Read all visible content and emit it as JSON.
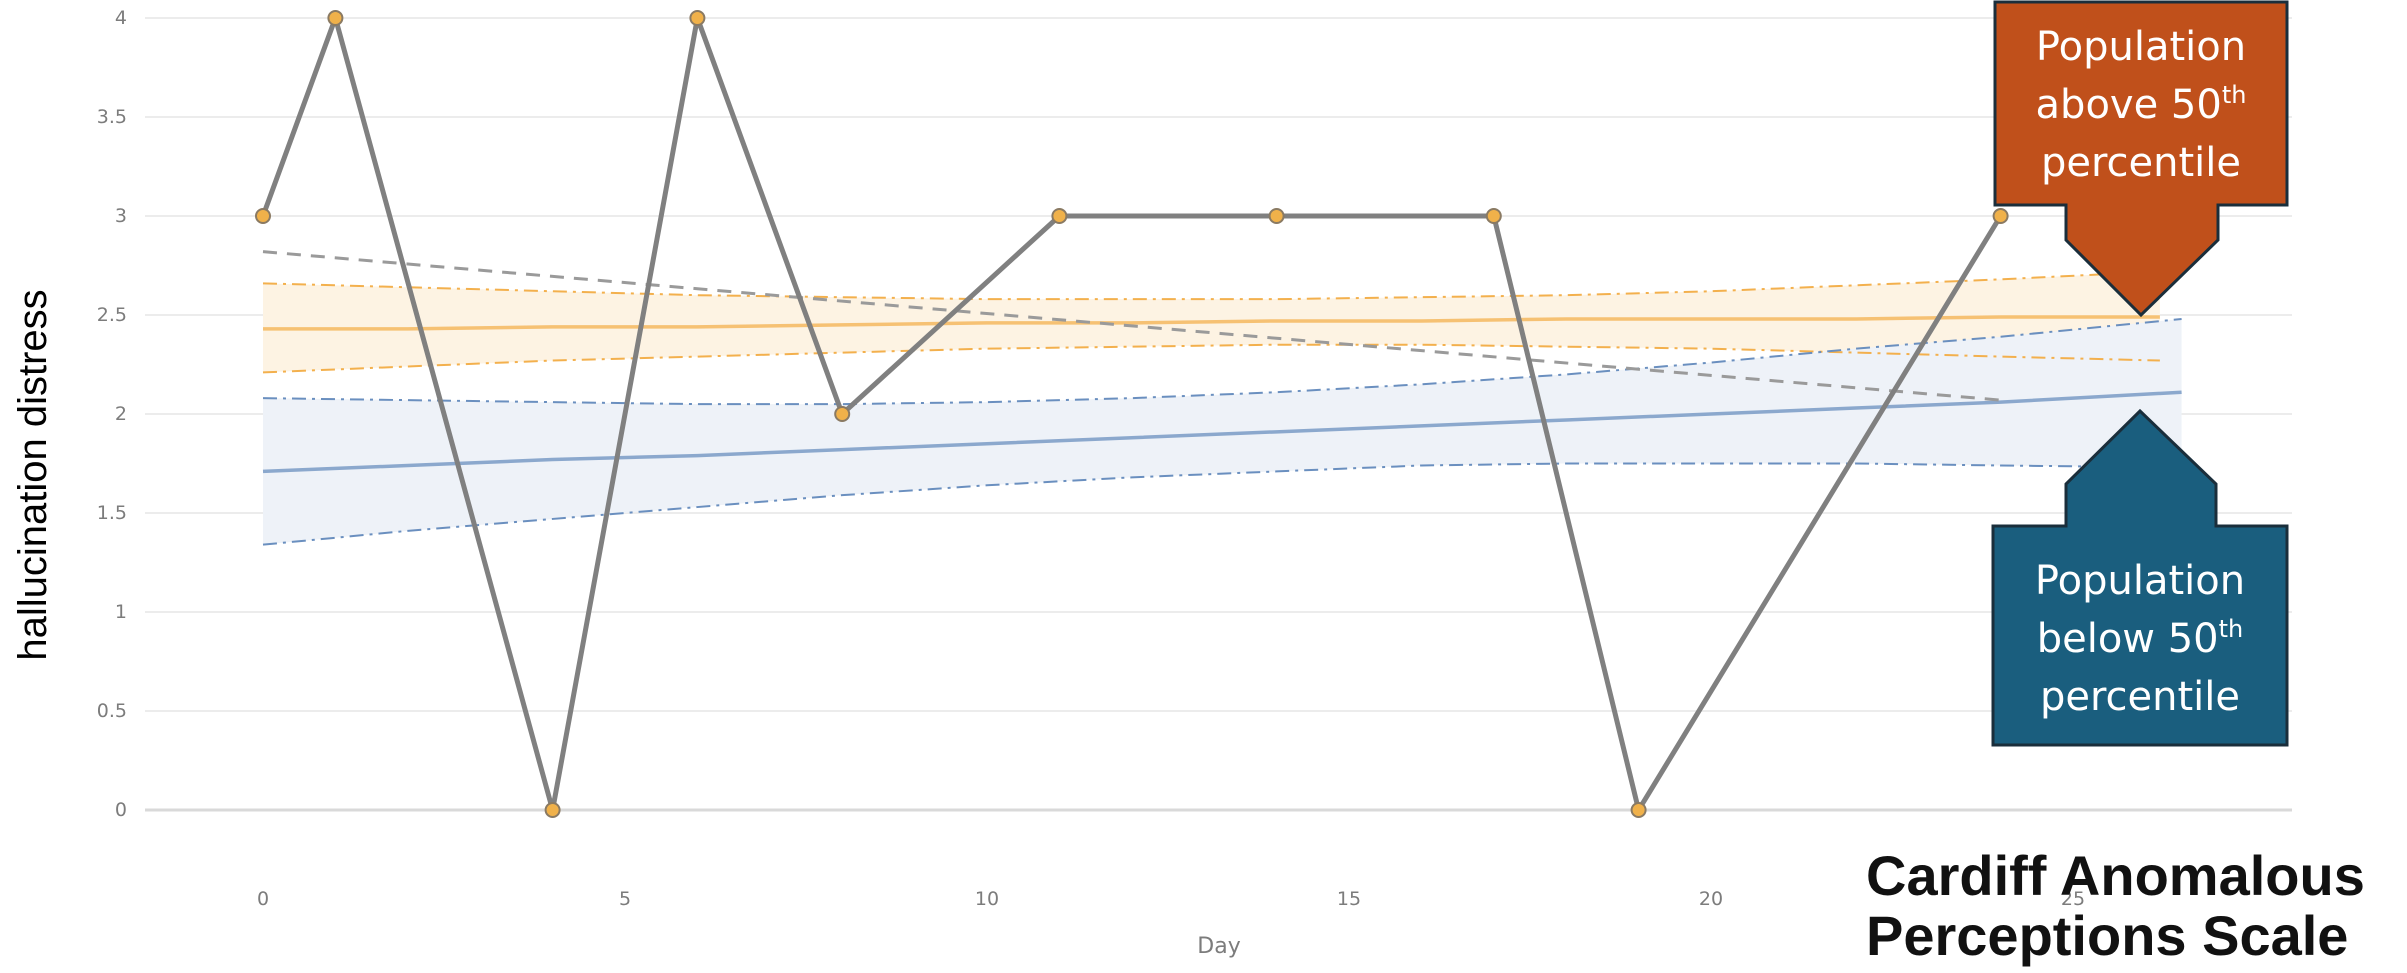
{
  "chart_data": {
    "type": "line",
    "title": "",
    "xlabel": "Day",
    "ylabel": "hallucination distress",
    "xlim": [
      -4,
      26.5
    ],
    "ylim": [
      0,
      4
    ],
    "x_ticks": [
      0,
      5,
      10,
      15,
      20,
      25
    ],
    "y_ticks": [
      0,
      0.5,
      1,
      1.5,
      2,
      2.5,
      3,
      3.5,
      4
    ],
    "y_tick_labels": [
      "0",
      "0.5",
      "1",
      "1.5",
      "2",
      "2.5",
      "3",
      "3.5",
      "4"
    ],
    "grid": true,
    "series": [
      {
        "style": "solid-with-markers",
        "color": "#808080",
        "marker_color": "#f0b14a",
        "x": [
          0,
          1,
          4,
          6,
          8,
          11,
          14,
          17,
          19,
          24
        ],
        "y": [
          3,
          4,
          0,
          4,
          2,
          3,
          3,
          3,
          0,
          3
        ]
      },
      {
        "style": "dashed-trend",
        "color": "#9a9a9a",
        "x": [
          0,
          24
        ],
        "y": [
          2.82,
          2.07
        ]
      }
    ],
    "bands": [
      {
        "color": "#f3b04d",
        "fill": "#fdf3e3",
        "x": [
          0,
          2,
          4,
          6,
          8,
          10,
          12,
          14,
          16,
          18,
          20,
          22,
          24,
          26.2
        ],
        "mean": [
          2.43,
          2.43,
          2.44,
          2.44,
          2.45,
          2.46,
          2.46,
          2.47,
          2.47,
          2.48,
          2.48,
          2.48,
          2.49,
          2.49
        ],
        "upper": [
          2.66,
          2.64,
          2.62,
          2.6,
          2.59,
          2.58,
          2.58,
          2.58,
          2.59,
          2.6,
          2.62,
          2.65,
          2.68,
          2.72
        ],
        "lower": [
          2.21,
          2.24,
          2.27,
          2.29,
          2.31,
          2.33,
          2.34,
          2.35,
          2.35,
          2.34,
          2.33,
          2.31,
          2.29,
          2.27
        ]
      },
      {
        "color": "#6a8fbf",
        "fill": "#eef2f8",
        "x": [
          0,
          2,
          4,
          6,
          8,
          10,
          12,
          14,
          16,
          18,
          20,
          22,
          24,
          26.5
        ],
        "mean": [
          1.71,
          1.74,
          1.77,
          1.79,
          1.82,
          1.85,
          1.88,
          1.91,
          1.94,
          1.97,
          2.0,
          2.03,
          2.06,
          2.11
        ],
        "upper": [
          2.08,
          2.07,
          2.06,
          2.05,
          2.05,
          2.06,
          2.08,
          2.11,
          2.15,
          2.2,
          2.26,
          2.33,
          2.39,
          2.48
        ],
        "lower": [
          1.34,
          1.41,
          1.47,
          1.53,
          1.59,
          1.64,
          1.68,
          1.71,
          1.74,
          1.75,
          1.75,
          1.75,
          1.74,
          1.73
        ]
      }
    ]
  },
  "callouts": {
    "above": {
      "line1": "Population",
      "line2_pre": "above 50",
      "line2_sup": "th",
      "line3": "percentile",
      "color": "#c0501b"
    },
    "below": {
      "line1": "Population",
      "line2_pre": "below 50",
      "line2_sup": "th",
      "line3": "percentile",
      "color": "#1a5e7e"
    }
  },
  "scale_title": {
    "line1": "Cardiff Anomalous",
    "line2": "Perceptions Scale"
  }
}
